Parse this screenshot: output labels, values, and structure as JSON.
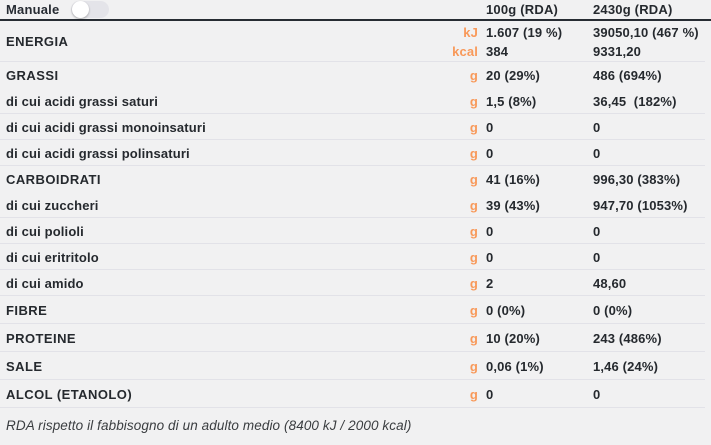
{
  "colors": {
    "page_background": "#f1f1f2",
    "accent_orange": "#f8995a",
    "text_dark": "#25292e",
    "divider": "#e2e2e8",
    "header_line": "#272c33"
  },
  "header": {
    "manual_label": "Manuale",
    "toggle_state": "off",
    "col_per_100g": "100g (RDA)",
    "col_total": "2430g (RDA)"
  },
  "rows": [
    {
      "name": "energia",
      "label": "ENERGIA",
      "category": true,
      "unit": [
        "kJ",
        "kcal"
      ],
      "val_100g": [
        "1.607 (19 %)",
        "384"
      ],
      "val_total": [
        "39050,10 (467 %)",
        "9331,20"
      ],
      "divider": true
    },
    {
      "name": "grassi",
      "label": "GRASSI",
      "category": true,
      "unit": "g",
      "val_100g": "20 (29%)",
      "val_total": "486 (694%)",
      "divider": false
    },
    {
      "name": "grassi-saturi",
      "label": "di cui acidi grassi saturi",
      "category": false,
      "unit": "g",
      "val_100g": "1,5 (8%)",
      "val_total": "36,45  (182%)",
      "divider": true
    },
    {
      "name": "grassi-monoinsaturi",
      "label": "di cui acidi grassi monoinsaturi",
      "category": false,
      "unit": "g",
      "val_100g": "0",
      "val_total": "0",
      "divider": true
    },
    {
      "name": "grassi-polinsaturi",
      "label": "di cui acidi grassi polinsaturi",
      "category": false,
      "unit": "g",
      "val_100g": "0",
      "val_total": "0",
      "divider": true
    },
    {
      "name": "carboidrati",
      "label": "CARBOIDRATI",
      "category": true,
      "unit": "g",
      "val_100g": "41 (16%)",
      "val_total": "996,30 (383%)",
      "divider": false
    },
    {
      "name": "zuccheri",
      "label": "di cui zuccheri",
      "category": false,
      "unit": "g",
      "val_100g": "39 (43%)",
      "val_total": "947,70 (1053%)",
      "divider": true
    },
    {
      "name": "polioli",
      "label": "di cui polioli",
      "category": false,
      "unit": "g",
      "val_100g": "0",
      "val_total": "0",
      "divider": true
    },
    {
      "name": "eritritolo",
      "label": "di cui eritritolo",
      "category": false,
      "unit": "g",
      "val_100g": "0",
      "val_total": "0",
      "divider": true
    },
    {
      "name": "amido",
      "label": "di cui amido",
      "category": false,
      "unit": "g",
      "val_100g": "2",
      "val_total": "48,60",
      "divider": true
    },
    {
      "name": "fibre",
      "label": "FIBRE",
      "category": true,
      "unit": "g",
      "val_100g": "0 (0%)",
      "val_total": "0 (0%)",
      "divider": true
    },
    {
      "name": "proteine",
      "label": "PROTEINE",
      "category": true,
      "unit": "g",
      "val_100g": "10 (20%)",
      "val_total": "243 (486%)",
      "divider": true
    },
    {
      "name": "sale",
      "label": "SALE",
      "category": true,
      "unit": "g",
      "val_100g": "0,06 (1%)",
      "val_total": "1,46 (24%)",
      "divider": true
    },
    {
      "name": "alcol-etanolo",
      "label": "ALCOL (ETANOLO)",
      "category": true,
      "unit": "g",
      "val_100g": "0",
      "val_total": "0",
      "divider": true
    }
  ],
  "footer": {
    "note": "RDA rispetto il fabbisogno di un adulto medio (8400 kJ / 2000 kcal)"
  }
}
